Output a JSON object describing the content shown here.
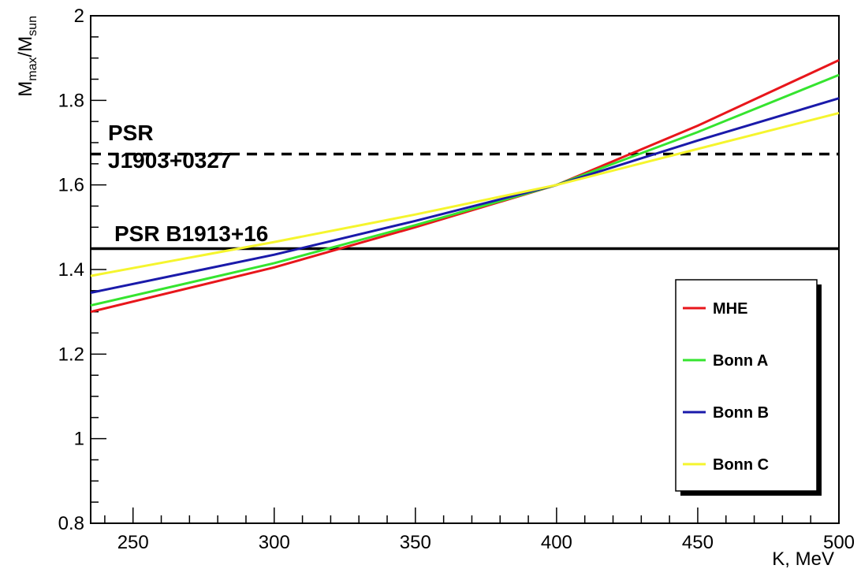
{
  "chart_data": {
    "type": "line",
    "xlabel": "K, MeV",
    "ylabel": {
      "main": "M",
      "sub1": "max",
      "sep": "/M",
      "sub2": "sun"
    },
    "xlim": [
      235,
      500
    ],
    "ylim": [
      0.8,
      2.0
    ],
    "x_ticks": [
      250,
      300,
      350,
      400,
      450,
      500
    ],
    "y_ticks": [
      0.8,
      1,
      1.2,
      1.4,
      1.6,
      1.8,
      2
    ],
    "y_tick_labels": [
      "0.8",
      "1",
      "1.2",
      "1.4",
      "1.6",
      "1.8",
      "2"
    ],
    "grid": false,
    "legend_position": "bottom-right",
    "series": [
      {
        "name": "MHE",
        "color": "#e8161b",
        "x": [
          235,
          300,
          350,
          400,
          450,
          500
        ],
        "y": [
          1.3,
          1.405,
          1.5,
          1.6,
          1.74,
          1.895
        ]
      },
      {
        "name": "Bonn A",
        "color": "#35e42f",
        "x": [
          235,
          300,
          350,
          400,
          450,
          500
        ],
        "y": [
          1.315,
          1.415,
          1.505,
          1.6,
          1.725,
          1.86
        ]
      },
      {
        "name": "Bonn B",
        "color": "#1a1aaa",
        "x": [
          235,
          300,
          350,
          400,
          450,
          500
        ],
        "y": [
          1.345,
          1.435,
          1.515,
          1.6,
          1.705,
          1.805
        ]
      },
      {
        "name": "Bonn C",
        "color": "#f5f52e",
        "x": [
          235,
          300,
          350,
          400,
          450,
          500
        ],
        "y": [
          1.385,
          1.465,
          1.53,
          1.6,
          1.685,
          1.77
        ]
      }
    ],
    "reference_lines": [
      {
        "label_lines": [
          "PSR",
          "J1903+0327"
        ],
        "y": 1.673,
        "style": "dashed"
      },
      {
        "label_lines": [
          "PSR B1913+16"
        ],
        "y": 1.4494,
        "style": "solid"
      }
    ]
  }
}
